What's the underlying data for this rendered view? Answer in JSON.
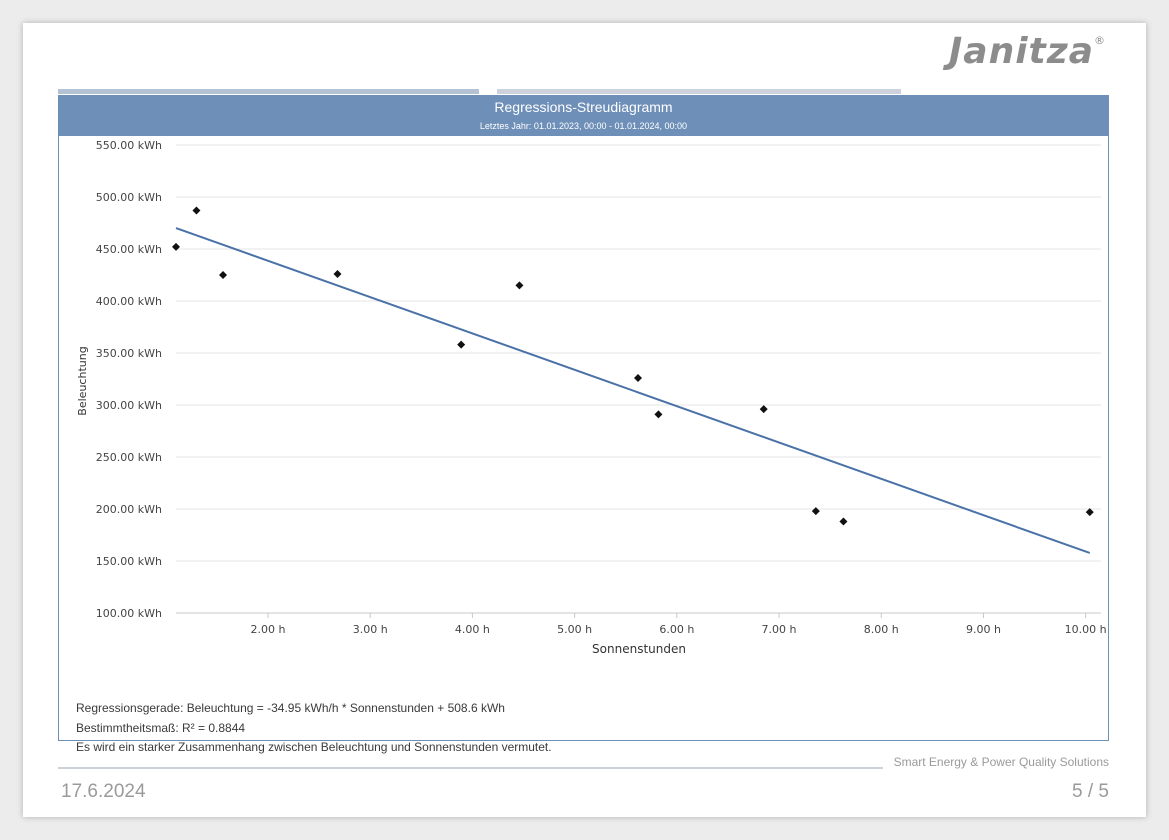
{
  "brand": {
    "logo_text": "Janitza",
    "logo_mark": "®",
    "tagline": "Smart Energy & Power Quality Solutions"
  },
  "footer": {
    "date": "17.6.2024",
    "page": "5 / 5"
  },
  "panel": {
    "title": "Regressions-Streudiagramm",
    "subtitle": "Letztes Jahr: 01.01.2023, 00:00 - 01.01.2024, 00:00",
    "colors": {
      "header": "#6e8fb8",
      "line": "#4a72a8",
      "points": "#111111"
    }
  },
  "info": {
    "line1": "Regressionsgerade: Beleuchtung = -34.95 kWh/h * Sonnenstunden + 508.6 kWh",
    "line2": "Bestimmtheitsmaß: R² = 0.8844",
    "line3": "Es wird ein starker Zusammenhang zwischen Beleuchtung und Sonnenstunden vermutet."
  },
  "chart_data": {
    "type": "scatter",
    "xlabel": "Sonnenstunden",
    "ylabel": "Beleuchtung",
    "xlim": [
      1.1,
      10.15
    ],
    "ylim": [
      100,
      550
    ],
    "grid": true,
    "x_ticks": [
      {
        "value": 2,
        "label": "2.00 h"
      },
      {
        "value": 3,
        "label": "3.00 h"
      },
      {
        "value": 4,
        "label": "4.00 h"
      },
      {
        "value": 5,
        "label": "5.00 h"
      },
      {
        "value": 6,
        "label": "6.00 h"
      },
      {
        "value": 7,
        "label": "7.00 h"
      },
      {
        "value": 8,
        "label": "8.00 h"
      },
      {
        "value": 9,
        "label": "9.00 h"
      },
      {
        "value": 10,
        "label": "10.00 h"
      }
    ],
    "y_ticks": [
      {
        "value": 100,
        "label": "100.00 kWh"
      },
      {
        "value": 150,
        "label": "150.00 kWh"
      },
      {
        "value": 200,
        "label": "200.00 kWh"
      },
      {
        "value": 250,
        "label": "250.00 kWh"
      },
      {
        "value": 300,
        "label": "300.00 kWh"
      },
      {
        "value": 350,
        "label": "350.00 kWh"
      },
      {
        "value": 400,
        "label": "400.00 kWh"
      },
      {
        "value": 450,
        "label": "450.00 kWh"
      },
      {
        "value": 500,
        "label": "500.00 kWh"
      },
      {
        "value": 550,
        "label": "550.00 kWh"
      }
    ],
    "points": [
      {
        "x": 1.1,
        "y": 452
      },
      {
        "x": 1.3,
        "y": 487
      },
      {
        "x": 1.56,
        "y": 425
      },
      {
        "x": 2.68,
        "y": 426
      },
      {
        "x": 3.89,
        "y": 358
      },
      {
        "x": 4.46,
        "y": 415
      },
      {
        "x": 5.62,
        "y": 326
      },
      {
        "x": 5.82,
        "y": 291
      },
      {
        "x": 6.85,
        "y": 296
      },
      {
        "x": 7.36,
        "y": 198
      },
      {
        "x": 7.63,
        "y": 188
      },
      {
        "x": 10.04,
        "y": 197
      }
    ],
    "regression": {
      "slope": -34.95,
      "intercept": 508.6,
      "x_range": [
        1.1,
        10.04
      ]
    }
  }
}
